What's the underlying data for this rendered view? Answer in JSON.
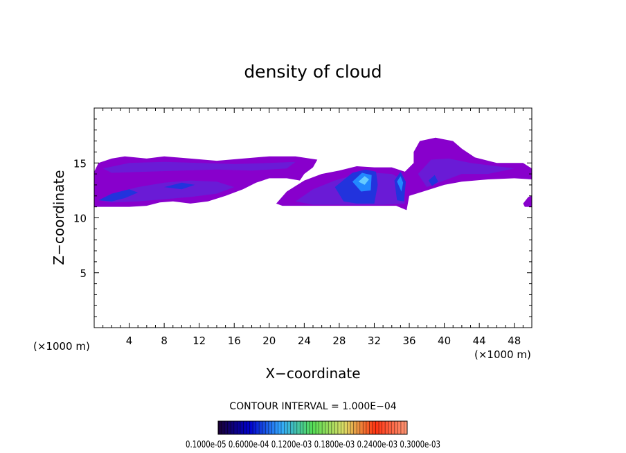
{
  "chart_data": {
    "type": "heatmap",
    "title": "density of cloud",
    "xlabel": "X−coordinate",
    "ylabel": "Z−coordinate",
    "x_unit_left": "(×1000 m)",
    "x_unit_right": "(×1000 m)",
    "xlim": [
      0,
      50
    ],
    "ylim": [
      0,
      20
    ],
    "x_ticks": [
      4,
      8,
      12,
      16,
      20,
      24,
      28,
      32,
      36,
      40,
      44,
      48
    ],
    "y_ticks": [
      5,
      10,
      15
    ],
    "contour_interval_label": "CONTOUR INTERVAL = 1.000E−04",
    "colorbar_labels_text": "0.1000e-05 0.6000e-04 0.1200e-03 0.1800e-03 0.2400e-03 0.3000e-03",
    "colorbar_values": [
      1e-06,
      6e-05,
      0.00012,
      0.00018,
      0.00024,
      0.0003
    ],
    "colorbar_colors": [
      "#1a0033",
      "#0000cc",
      "#33aaff",
      "#55dd55",
      "#dddd66",
      "#ff3311",
      "#ff9977"
    ],
    "cloud_colors": {
      "outer": "#8800cc",
      "mid": "#6a1bd6",
      "inner": "#2233dd",
      "core": "#2288ff",
      "highlight": "#66ccff"
    },
    "cloud_regions": [
      {
        "layer": "outer",
        "points": [
          [
            0,
            14.2
          ],
          [
            0.5,
            15
          ],
          [
            2,
            15.4
          ],
          [
            3.5,
            15.6
          ],
          [
            6,
            15.4
          ],
          [
            8,
            15.6
          ],
          [
            11,
            15.4
          ],
          [
            14,
            15.2
          ],
          [
            17,
            15.4
          ],
          [
            20,
            15.6
          ],
          [
            23,
            15.6
          ],
          [
            25.5,
            15.3
          ],
          [
            25,
            14.6
          ],
          [
            24,
            14
          ],
          [
            23.5,
            13.4
          ],
          [
            22,
            13.6
          ],
          [
            20,
            13.6
          ],
          [
            18.5,
            13.2
          ],
          [
            17,
            12.6
          ],
          [
            15,
            12
          ],
          [
            13,
            11.5
          ],
          [
            11,
            11.3
          ],
          [
            9,
            11.5
          ],
          [
            7.5,
            11.4
          ],
          [
            6,
            11.1
          ],
          [
            4,
            11
          ],
          [
            2,
            11
          ],
          [
            0,
            11
          ]
        ]
      },
      {
        "layer": "outer",
        "points": [
          [
            20.8,
            11.3
          ],
          [
            22,
            12.4
          ],
          [
            24,
            13.4
          ],
          [
            26,
            14
          ],
          [
            28,
            14.3
          ],
          [
            30,
            14.7
          ],
          [
            32,
            14.6
          ],
          [
            34,
            14.6
          ],
          [
            35.5,
            14.2
          ],
          [
            36.5,
            15
          ],
          [
            36.5,
            16
          ],
          [
            37.2,
            17
          ],
          [
            39,
            17.3
          ],
          [
            41,
            17
          ],
          [
            42,
            16.3
          ],
          [
            43.5,
            15.5
          ],
          [
            46,
            15
          ],
          [
            49,
            15
          ],
          [
            50,
            14.5
          ],
          [
            50,
            13.5
          ],
          [
            48,
            13.6
          ],
          [
            45,
            13.5
          ],
          [
            42,
            13.3
          ],
          [
            40,
            13
          ],
          [
            38,
            12.5
          ],
          [
            36,
            12
          ],
          [
            35.7,
            10.7
          ],
          [
            34.5,
            11.1
          ],
          [
            32,
            11.1
          ],
          [
            28,
            11.1
          ],
          [
            24,
            11.1
          ],
          [
            21.5,
            11.1
          ]
        ]
      },
      {
        "layer": "outer",
        "points": [
          [
            49,
            11.3
          ],
          [
            49.6,
            11.9
          ],
          [
            50,
            12
          ],
          [
            50,
            11
          ],
          [
            49.2,
            11
          ]
        ]
      },
      {
        "layer": "mid",
        "points": [
          [
            0.5,
            11.6
          ],
          [
            2.5,
            12.3
          ],
          [
            5,
            12.8
          ],
          [
            8,
            13.2
          ],
          [
            11,
            13.4
          ],
          [
            14,
            13.3
          ],
          [
            16,
            12.8
          ],
          [
            14,
            12.2
          ],
          [
            11,
            11.9
          ],
          [
            8,
            11.7
          ],
          [
            5,
            11.5
          ],
          [
            2,
            11.4
          ]
        ]
      },
      {
        "layer": "mid",
        "points": [
          [
            1,
            14.5
          ],
          [
            4,
            15
          ],
          [
            8,
            15.1
          ],
          [
            12,
            15
          ],
          [
            16,
            14.9
          ],
          [
            20,
            15
          ],
          [
            23,
            15.1
          ],
          [
            22,
            14.5
          ],
          [
            18,
            14.3
          ],
          [
            14,
            14.4
          ],
          [
            10,
            14.3
          ],
          [
            6,
            14.2
          ],
          [
            2,
            14.1
          ]
        ]
      },
      {
        "layer": "mid",
        "points": [
          [
            23,
            11.5
          ],
          [
            25,
            12.6
          ],
          [
            27.5,
            13.4
          ],
          [
            30,
            14
          ],
          [
            32,
            14.1
          ],
          [
            34,
            14
          ],
          [
            35.2,
            13.5
          ],
          [
            35.5,
            11.3
          ],
          [
            33,
            11.2
          ],
          [
            29,
            11.2
          ],
          [
            25,
            11.2
          ]
        ]
      },
      {
        "layer": "mid",
        "points": [
          [
            37,
            14
          ],
          [
            38.5,
            15.3
          ],
          [
            40.5,
            15.4
          ],
          [
            43,
            15
          ],
          [
            46,
            14.7
          ],
          [
            48,
            14.5
          ],
          [
            45,
            14
          ],
          [
            42,
            14
          ],
          [
            40,
            13.4
          ],
          [
            38,
            12.8
          ]
        ]
      },
      {
        "layer": "inner",
        "points": [
          [
            0.5,
            11.6
          ],
          [
            2,
            12.2
          ],
          [
            4,
            12.6
          ],
          [
            5,
            12.3
          ],
          [
            3.5,
            11.8
          ],
          [
            2,
            11.5
          ]
        ]
      },
      {
        "layer": "inner",
        "points": [
          [
            8,
            12.8
          ],
          [
            10,
            13.2
          ],
          [
            11.5,
            13
          ],
          [
            10,
            12.6
          ]
        ]
      },
      {
        "layer": "inner",
        "points": [
          [
            27.5,
            12.8
          ],
          [
            29.5,
            14.1
          ],
          [
            31,
            14.4
          ],
          [
            32.2,
            14.2
          ],
          [
            32.4,
            13
          ],
          [
            32,
            11.3
          ],
          [
            30,
            11.3
          ],
          [
            28.5,
            11.5
          ]
        ]
      },
      {
        "layer": "inner",
        "points": [
          [
            34.3,
            13.4
          ],
          [
            35,
            14.2
          ],
          [
            35.6,
            13.3
          ],
          [
            35.4,
            11.5
          ],
          [
            34.6,
            11.6
          ]
        ]
      },
      {
        "layer": "inner",
        "points": [
          [
            38.2,
            13.4
          ],
          [
            38.9,
            13.9
          ],
          [
            39.3,
            13.3
          ],
          [
            38.6,
            12.9
          ]
        ]
      },
      {
        "layer": "core",
        "points": [
          [
            29.5,
            13.3
          ],
          [
            30.6,
            14.1
          ],
          [
            31.7,
            13.9
          ],
          [
            31.6,
            12.5
          ],
          [
            30.5,
            12.4
          ]
        ]
      },
      {
        "layer": "core",
        "points": [
          [
            34.6,
            13.3
          ],
          [
            35,
            13.8
          ],
          [
            35.3,
            13.2
          ],
          [
            35.1,
            12.4
          ]
        ]
      },
      {
        "layer": "highlight",
        "points": [
          [
            30.2,
            13.3
          ],
          [
            30.9,
            13.8
          ],
          [
            31.4,
            13.5
          ],
          [
            30.9,
            13
          ]
        ]
      }
    ]
  }
}
